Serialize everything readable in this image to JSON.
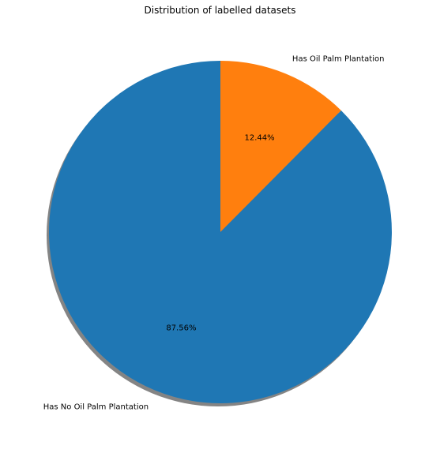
{
  "chart_data": {
    "type": "pie",
    "title": "Distribution of labelled datasets",
    "start_angle_deg": 90,
    "direction": "clockwise",
    "shadow": true,
    "slices": [
      {
        "label": "Has Oil Palm Plantation",
        "value": 12.44,
        "pct_label": "12.44%",
        "color": "#ff7f0e"
      },
      {
        "label": "Has No Oil Palm Plantation",
        "value": 87.56,
        "pct_label": "87.56%",
        "color": "#1f77b4"
      }
    ]
  }
}
